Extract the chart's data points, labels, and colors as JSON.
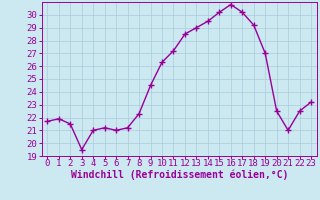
{
  "x": [
    0,
    1,
    2,
    3,
    4,
    5,
    6,
    7,
    8,
    9,
    10,
    11,
    12,
    13,
    14,
    15,
    16,
    17,
    18,
    19,
    20,
    21,
    22,
    23
  ],
  "y": [
    21.7,
    21.9,
    21.5,
    19.5,
    21.0,
    21.2,
    21.0,
    21.2,
    22.3,
    24.5,
    26.3,
    27.2,
    28.5,
    29.0,
    29.5,
    30.2,
    30.8,
    30.2,
    29.2,
    27.0,
    22.5,
    21.0,
    22.5,
    23.2
  ],
  "line_color": "#990099",
  "marker": "+",
  "marker_size": 4,
  "bg_color": "#cce8f0",
  "grid_color": "#aaccdd",
  "xlabel": "Windchill (Refroidissement éolien,°C)",
  "ylim": [
    19,
    31
  ],
  "xlim": [
    -0.5,
    23.5
  ],
  "yticks": [
    19,
    20,
    21,
    22,
    23,
    24,
    25,
    26,
    27,
    28,
    29,
    30
  ],
  "xticks": [
    0,
    1,
    2,
    3,
    4,
    5,
    6,
    7,
    8,
    9,
    10,
    11,
    12,
    13,
    14,
    15,
    16,
    17,
    18,
    19,
    20,
    21,
    22,
    23
  ],
  "tick_color": "#990099",
  "xlabel_fontsize": 7,
  "tick_fontsize": 6.5,
  "linewidth": 1.0
}
